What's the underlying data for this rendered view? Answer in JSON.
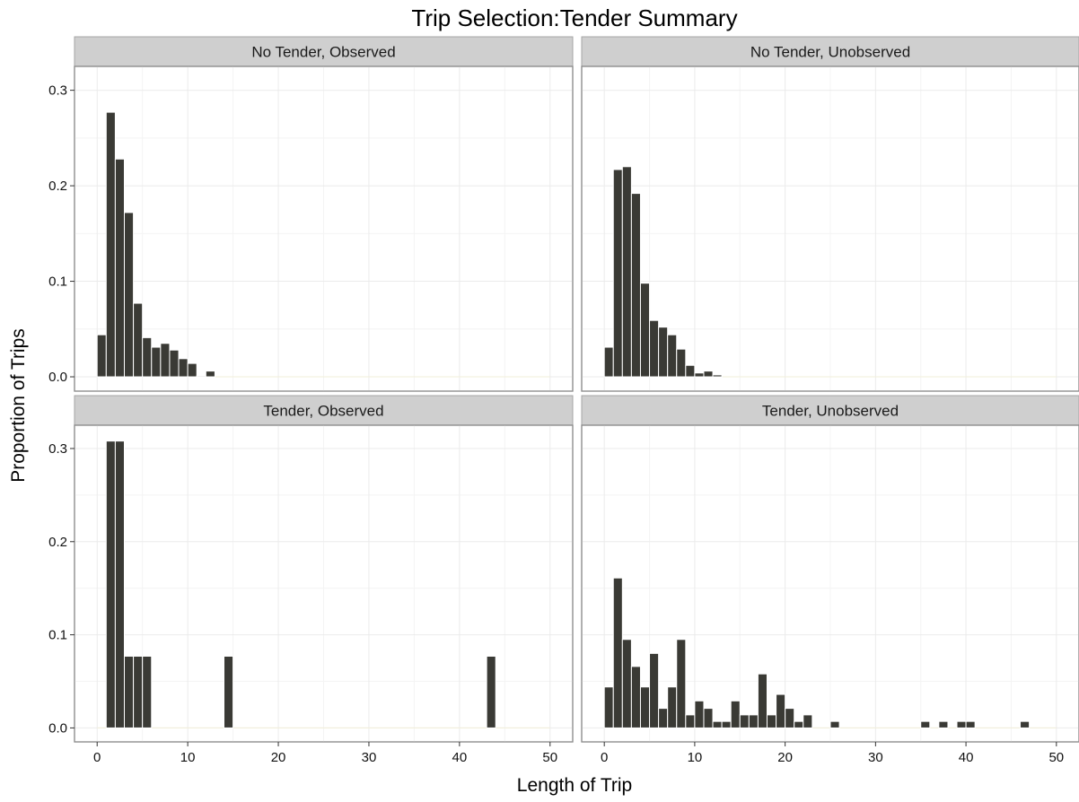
{
  "colors": {
    "bar": "#3a3a35",
    "strip": "#cfcfcf",
    "panel_border": "#8c8c8c"
  },
  "chart_data": {
    "type": "bar",
    "title": "Trip Selection:Tender Summary",
    "xlabel": "Length of Trip",
    "ylabel": "Proportion of Trips",
    "xlim": [
      -2.5,
      52.5
    ],
    "x_ticks": [
      "0",
      "10",
      "20",
      "30",
      "40",
      "50"
    ],
    "x_tick_values": [
      0,
      10,
      20,
      30,
      40,
      50
    ],
    "grid": true,
    "facets": [
      {
        "label": "No Tender, Observed",
        "ylim": [
          -0.015,
          0.325
        ],
        "y_ticks": [
          "0.0",
          "0.1",
          "0.2",
          "0.3"
        ],
        "y_tick_values": [
          0,
          0.1,
          0.2,
          0.3
        ],
        "bars": [
          {
            "x": 0.5,
            "y": 0.044
          },
          {
            "x": 1.5,
            "y": 0.277
          },
          {
            "x": 2.5,
            "y": 0.228
          },
          {
            "x": 3.5,
            "y": 0.172
          },
          {
            "x": 4.5,
            "y": 0.077
          },
          {
            "x": 5.5,
            "y": 0.041
          },
          {
            "x": 6.5,
            "y": 0.031
          },
          {
            "x": 7.5,
            "y": 0.035
          },
          {
            "x": 8.5,
            "y": 0.028
          },
          {
            "x": 9.5,
            "y": 0.019
          },
          {
            "x": 10.5,
            "y": 0.014
          },
          {
            "x": 11.5,
            "y": 0.001
          },
          {
            "x": 12.5,
            "y": 0.006
          }
        ]
      },
      {
        "label": "No Tender, Unobserved",
        "ylim": [
          -0.015,
          0.325
        ],
        "y_ticks": [
          "0.0",
          "0.1",
          "0.2",
          "0.3"
        ],
        "y_tick_values": [
          0,
          0.1,
          0.2,
          0.3
        ],
        "bars": [
          {
            "x": 0.5,
            "y": 0.031
          },
          {
            "x": 1.5,
            "y": 0.217
          },
          {
            "x": 2.5,
            "y": 0.22
          },
          {
            "x": 3.5,
            "y": 0.192
          },
          {
            "x": 4.5,
            "y": 0.098
          },
          {
            "x": 5.5,
            "y": 0.059
          },
          {
            "x": 6.5,
            "y": 0.052
          },
          {
            "x": 7.5,
            "y": 0.044
          },
          {
            "x": 8.5,
            "y": 0.029
          },
          {
            "x": 9.5,
            "y": 0.012
          },
          {
            "x": 10.5,
            "y": 0.004
          },
          {
            "x": 11.5,
            "y": 0.006
          },
          {
            "x": 12.5,
            "y": 0.002
          }
        ]
      },
      {
        "label": "Tender, Observed",
        "ylim": [
          -0.015,
          0.325
        ],
        "y_ticks": [
          "0.0",
          "0.1",
          "0.2",
          "0.3"
        ],
        "y_tick_values": [
          0,
          0.1,
          0.2,
          0.3
        ],
        "bars": [
          {
            "x": 1.5,
            "y": 0.308
          },
          {
            "x": 2.5,
            "y": 0.308
          },
          {
            "x": 3.5,
            "y": 0.077
          },
          {
            "x": 4.5,
            "y": 0.077
          },
          {
            "x": 5.5,
            "y": 0.077
          },
          {
            "x": 14.5,
            "y": 0.077
          },
          {
            "x": 43.5,
            "y": 0.077
          }
        ]
      },
      {
        "label": "Tender, Unobserved",
        "ylim": [
          -0.015,
          0.325
        ],
        "y_ticks": [
          "0.0",
          "0.1",
          "0.2",
          "0.3"
        ],
        "y_tick_values": [
          0,
          0.1,
          0.2,
          0.3
        ],
        "bars": [
          {
            "x": 0.5,
            "y": 0.044
          },
          {
            "x": 1.5,
            "y": 0.161
          },
          {
            "x": 2.5,
            "y": 0.095
          },
          {
            "x": 3.5,
            "y": 0.066
          },
          {
            "x": 4.5,
            "y": 0.044
          },
          {
            "x": 5.5,
            "y": 0.08
          },
          {
            "x": 6.5,
            "y": 0.021
          },
          {
            "x": 7.5,
            "y": 0.044
          },
          {
            "x": 8.5,
            "y": 0.095
          },
          {
            "x": 9.5,
            "y": 0.014
          },
          {
            "x": 10.5,
            "y": 0.029
          },
          {
            "x": 11.5,
            "y": 0.021
          },
          {
            "x": 12.5,
            "y": 0.007
          },
          {
            "x": 13.5,
            "y": 0.007
          },
          {
            "x": 14.5,
            "y": 0.029
          },
          {
            "x": 15.5,
            "y": 0.014
          },
          {
            "x": 16.5,
            "y": 0.014
          },
          {
            "x": 17.5,
            "y": 0.058
          },
          {
            "x": 18.5,
            "y": 0.014
          },
          {
            "x": 19.5,
            "y": 0.036
          },
          {
            "x": 20.5,
            "y": 0.021
          },
          {
            "x": 21.5,
            "y": 0.007
          },
          {
            "x": 22.5,
            "y": 0.014
          },
          {
            "x": 25.5,
            "y": 0.007
          },
          {
            "x": 35.5,
            "y": 0.007
          },
          {
            "x": 37.5,
            "y": 0.007
          },
          {
            "x": 39.5,
            "y": 0.007
          },
          {
            "x": 40.5,
            "y": 0.007
          },
          {
            "x": 46.5,
            "y": 0.007
          }
        ]
      }
    ]
  }
}
